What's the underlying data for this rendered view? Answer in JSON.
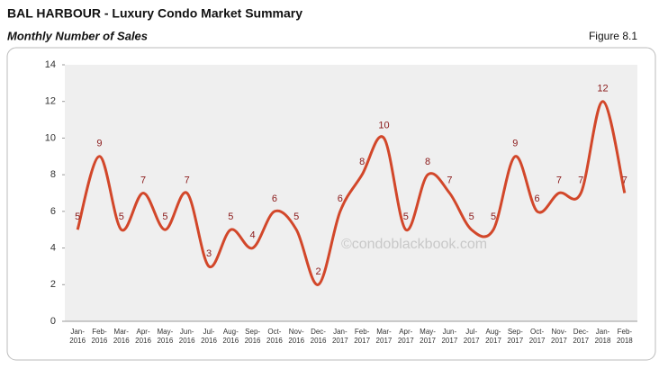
{
  "header": {
    "title": "BAL HARBOUR - Luxury Condo Market Summary",
    "subtitle": "Monthly Number of Sales",
    "figure": "Figure 8.1"
  },
  "chart_data": {
    "type": "line",
    "watermark": "©condoblackbook.com",
    "categories": [
      "Jan-2016",
      "Feb-2016",
      "Mar-2016",
      "Apr-2016",
      "May-2016",
      "Jun-2016",
      "Jul-2016",
      "Aug-2016",
      "Sep-2016",
      "Oct-2016",
      "Nov-2016",
      "Dec-2016",
      "Jan-2017",
      "Feb-2017",
      "Mar-2017",
      "Apr-2017",
      "May-2017",
      "Jun-2017",
      "Jul-2017",
      "Aug-2017",
      "Sep-2017",
      "Oct-2017",
      "Nov-2017",
      "Dec-2017",
      "Jan-2018",
      "Feb-2018"
    ],
    "values": [
      5,
      9,
      5,
      7,
      5,
      7,
      3,
      5,
      4,
      6,
      5,
      2,
      6,
      8,
      10,
      5,
      8,
      7,
      5,
      5,
      9,
      6,
      7,
      7,
      12,
      7
    ],
    "color": "#d2472a",
    "label_color": "#8b1a1a",
    "ylim": [
      0,
      14
    ],
    "yticks": [
      0,
      2,
      4,
      6,
      8,
      10,
      12,
      14
    ]
  }
}
